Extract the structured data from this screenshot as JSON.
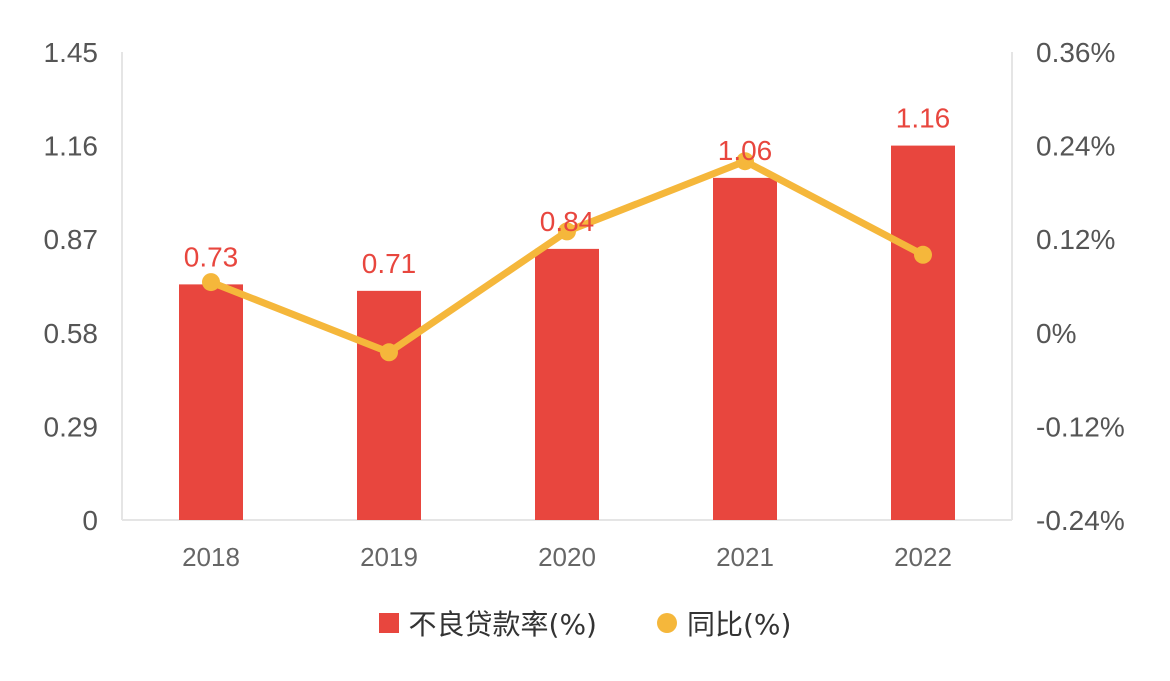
{
  "chart_data": {
    "type": "bar",
    "categories": [
      "2018",
      "2019",
      "2020",
      "2021",
      "2022"
    ],
    "series": [
      {
        "name": "不良贷款率(%)",
        "type": "bar",
        "axis": "left",
        "color": "#e8463e",
        "values": [
          0.73,
          0.71,
          0.84,
          1.06,
          1.16
        ],
        "data_labels": [
          "0.73",
          "0.71",
          "0.84",
          "1.06",
          "1.16"
        ]
      },
      {
        "name": "同比(%)",
        "type": "line",
        "axis": "right",
        "color": "#f5b73b",
        "values": [
          0.065,
          -0.025,
          0.13,
          0.22,
          0.1
        ]
      }
    ],
    "left_axis": {
      "ylim": [
        0,
        1.45
      ],
      "ticks": [
        "0",
        "0.29",
        "0.58",
        "0.87",
        "1.16",
        "1.45"
      ]
    },
    "right_axis": {
      "ylim": [
        -0.24,
        0.36
      ],
      "ticks": [
        "-0.24%",
        "-0.12%",
        "0%",
        "0.12%",
        "0.24%",
        "0.36%"
      ]
    },
    "grid": false,
    "legend_position": "bottom"
  },
  "legend": [
    {
      "label": "不良贷款率(%)",
      "color": "#e8463e",
      "shape": "square"
    },
    {
      "label": "同比(%)",
      "color": "#f5b73b",
      "shape": "circle"
    }
  ]
}
